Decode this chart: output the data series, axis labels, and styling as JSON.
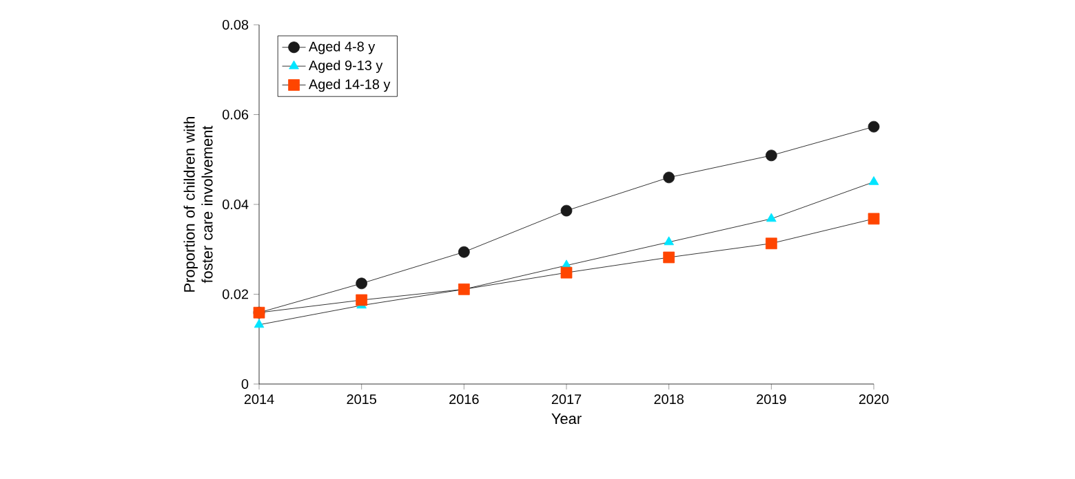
{
  "chart_data": {
    "type": "line",
    "xlabel": "Year",
    "ylabel": "Proportion of children with foster care involvement",
    "x": [
      2014,
      2015,
      2016,
      2017,
      2018,
      2019,
      2020
    ],
    "xlim": [
      2014,
      2020
    ],
    "xticks": [
      2014,
      2015,
      2016,
      2017,
      2018,
      2019,
      2020
    ],
    "ylim": [
      0,
      0.08
    ],
    "yticks": [
      0,
      0.02,
      0.04,
      0.06,
      0.08
    ],
    "legend": "top left",
    "line_style": "solid",
    "series": [
      {
        "name": "Aged 4-8 y",
        "color": "#1a1a1a",
        "marker": "circle",
        "values": [
          0.0159,
          0.0224,
          0.0294,
          0.0386,
          0.046,
          0.0509,
          0.0573
        ]
      },
      {
        "name": "Aged 9-13 y",
        "color": "#00e5ff",
        "marker": "triangle",
        "values": [
          0.0132,
          0.0175,
          0.0211,
          0.0264,
          0.0316,
          0.0368,
          0.045
        ]
      },
      {
        "name": "Aged 14-18 y",
        "color": "#ff4500",
        "marker": "square",
        "values": [
          0.0159,
          0.0187,
          0.0211,
          0.0248,
          0.0282,
          0.0313,
          0.0368
        ]
      }
    ]
  }
}
